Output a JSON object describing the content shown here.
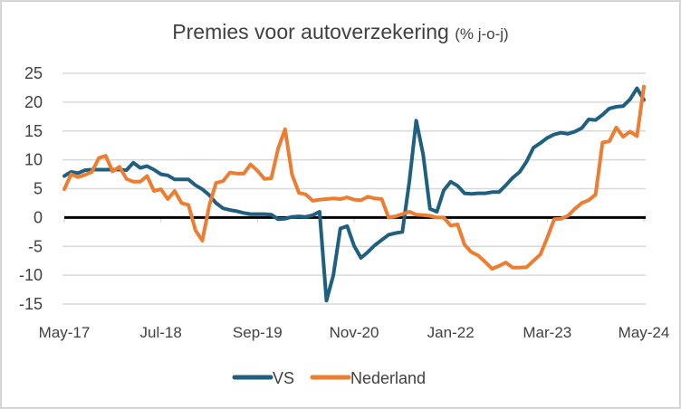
{
  "chart_data": {
    "type": "line",
    "title": "Premies voor autoverzekering",
    "title_suffix": "(% j-o-j)",
    "xlabel": "",
    "ylabel": "",
    "ylim": [
      -15,
      25
    ],
    "yticks": [
      25,
      20,
      15,
      10,
      5,
      0,
      -5,
      -10,
      -15
    ],
    "xtick_labels": [
      "May-17",
      "Jul-18",
      "Sep-19",
      "Nov-20",
      "Jan-22",
      "Mar-23",
      "May-24"
    ],
    "xtick_month_index": [
      0,
      14,
      28,
      42,
      56,
      70,
      84
    ],
    "x_start": "May-17",
    "x_end": "May-24",
    "frequency": "monthly",
    "grid": true,
    "zero_line": true,
    "legend_position": "bottom",
    "series": [
      {
        "name": "VS",
        "color": "#1f5f7f",
        "values": [
          7.2,
          7.9,
          7.7,
          8.2,
          8.3,
          8.3,
          8.3,
          8.3,
          8.3,
          8.2,
          9.5,
          8.6,
          8.9,
          8.3,
          7.5,
          7.3,
          6.6,
          6.6,
          6.6,
          5.6,
          4.9,
          3.9,
          2.5,
          1.6,
          1.3,
          1.1,
          0.8,
          0.6,
          0.6,
          0.6,
          0.5,
          -0.3,
          -0.2,
          0.1,
          0.2,
          0.1,
          0.4,
          1.0,
          -14.4,
          -10.0,
          -1.9,
          -1.5,
          -4.9,
          -7.0,
          -6.0,
          -4.8,
          -3.9,
          -3.0,
          -2.7,
          -2.5,
          6.2,
          16.8,
          11.0,
          1.5,
          1.0,
          4.7,
          6.2,
          5.5,
          4.2,
          4.1,
          4.2,
          4.2,
          4.4,
          4.4,
          5.6,
          6.9,
          7.9,
          9.7,
          12.1,
          12.9,
          13.8,
          14.4,
          14.7,
          14.5,
          14.9,
          15.5,
          17.0,
          16.9,
          17.8,
          18.9,
          19.2,
          19.3,
          20.5,
          22.4,
          20.4
        ]
      },
      {
        "name": "Nederland",
        "color": "#ed7d31",
        "values": [
          4.9,
          7.5,
          7.0,
          7.4,
          7.9,
          10.3,
          10.7,
          8.0,
          8.8,
          6.7,
          6.2,
          6.2,
          7.2,
          4.6,
          4.9,
          3.2,
          4.6,
          2.5,
          2.2,
          -2.2,
          -4.0,
          2.0,
          6.0,
          6.3,
          7.8,
          7.6,
          7.6,
          9.2,
          8.1,
          6.7,
          6.8,
          12.0,
          15.3,
          7.5,
          4.3,
          4.0,
          2.9,
          3.1,
          3.2,
          3.3,
          3.2,
          3.5,
          3.1,
          3.0,
          3.6,
          3.3,
          3.2,
          0.0,
          0.2,
          0.6,
          1.0,
          0.5,
          0.4,
          0.3,
          0.0,
          0.0,
          -1.4,
          -1.2,
          -4.7,
          -6.0,
          -6.6,
          -7.7,
          -8.9,
          -8.4,
          -7.8,
          -8.7,
          -8.7,
          -8.6,
          -7.5,
          -6.4,
          -3.5,
          -0.3,
          -0.2,
          0.3,
          1.5,
          2.5,
          3.0,
          4.0,
          13.0,
          13.2,
          15.6,
          14.0,
          14.9,
          14.1,
          22.7
        ]
      }
    ]
  }
}
